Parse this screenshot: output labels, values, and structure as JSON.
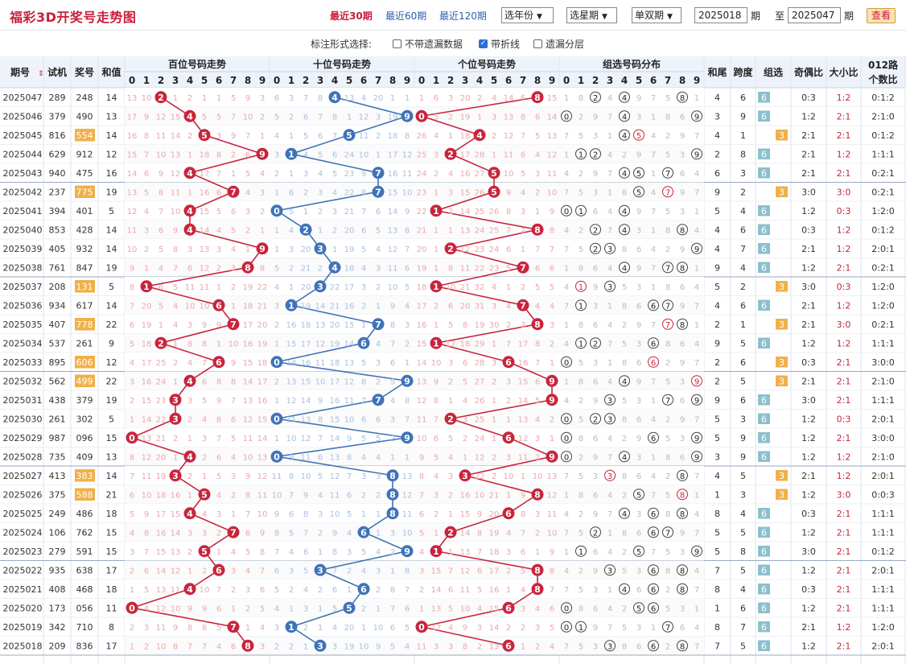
{
  "title": "福彩3D开奖号走势图",
  "quick": [
    "最近30期",
    "最近60期",
    "最近120期"
  ],
  "selects": [
    "选年份",
    "选星期",
    "单双期"
  ],
  "period_from": "2025018",
  "period_to": "2025047",
  "period_label": "期",
  "to_label": "至",
  "query_label": "查看",
  "options_label": "标注形式选择:",
  "options": [
    {
      "label": "不带遗漏数据",
      "checked": false
    },
    {
      "label": "带折线",
      "checked": true
    },
    {
      "label": "遗漏分层",
      "checked": false
    }
  ],
  "headers": {
    "qihao": "期号",
    "shiji": "试机",
    "jianghao": "奖号",
    "hezhi": "和值",
    "bai": "百位号码走势",
    "shi": "十位号码走势",
    "ge": "个位号码走势",
    "zuxuan_dist": "组选号码分布",
    "hewei": "和尾",
    "kuadu": "跨度",
    "zuxuan": "组选",
    "jiou": "奇偶比",
    "daxiao": "大小比",
    "lu012": "012路个数比"
  },
  "digits": [
    "0",
    "1",
    "2",
    "3",
    "4",
    "5",
    "6",
    "7",
    "8",
    "9"
  ],
  "colors": {
    "red": "#c8253c",
    "blue": "#3f73b8",
    "header_bg": "#eef3fb",
    "miss_red": "#e8a8b0",
    "miss_blue": "#a9bfe0",
    "miss_grey": "#bbbbbb",
    "g3": "#f0b04a",
    "g6": "#8cc0cc"
  },
  "rows": [
    {
      "period": "2025047",
      "shiji": "289",
      "num": "248",
      "sum": "14",
      "hw": "4",
      "kd": "6",
      "zx": "6",
      "jo": "0:3",
      "dx": "1:2",
      "lu": "0:1:2",
      "bm": [
        13,
        10,
        2,
        1,
        2,
        1,
        1,
        5,
        9,
        3
      ],
      "sm": [
        6,
        3,
        7,
        8,
        4,
        13,
        4,
        20,
        1,
        1
      ],
      "gm": [
        1,
        6,
        3,
        20,
        2,
        4,
        14,
        6,
        8,
        15
      ]
    },
    {
      "period": "2025046",
      "shiji": "379",
      "num": "490",
      "sum": "13",
      "hw": "3",
      "kd": "9",
      "zx": "6",
      "jo": "1:2",
      "dx": "2:1",
      "lu": "2:1:0",
      "bm": [
        17,
        9,
        12,
        15,
        4,
        5,
        5,
        7,
        10,
        2
      ],
      "sm": [
        5,
        2,
        6,
        7,
        8,
        1,
        12,
        3,
        19,
        9
      ],
      "gm": [
        0,
        5,
        2,
        19,
        1,
        3,
        13,
        8,
        6,
        14
      ]
    },
    {
      "period": "2025045",
      "shiji": "816",
      "num": "554",
      "sum": "14",
      "hw": "4",
      "kd": "1",
      "zx": "3",
      "jo": "2:1",
      "dx": "2:1",
      "lu": "0:1:2",
      "bm": [
        16,
        8,
        11,
        14,
        2,
        5,
        3,
        9,
        7,
        1
      ],
      "sm": [
        4,
        1,
        5,
        6,
        7,
        5,
        11,
        2,
        18,
        8
      ],
      "gm": [
        26,
        4,
        1,
        18,
        4,
        2,
        12,
        7,
        5,
        13
      ]
    },
    {
      "period": "2025044",
      "shiji": "629",
      "num": "912",
      "sum": "12",
      "hw": "2",
      "kd": "8",
      "zx": "6",
      "jo": "2:1",
      "dx": "1:2",
      "lu": "1:1:1",
      "bm": [
        15,
        7,
        10,
        13,
        1,
        18,
        8,
        2,
        6,
        9
      ],
      "sm": [
        3,
        1,
        4,
        5,
        6,
        24,
        10,
        1,
        17,
        12
      ],
      "gm": [
        25,
        3,
        2,
        17,
        28,
        1,
        11,
        6,
        4,
        12
      ]
    },
    {
      "period": "2025043",
      "shiji": "940",
      "num": "475",
      "sum": "16",
      "hw": "6",
      "kd": "3",
      "zx": "6",
      "jo": "2:1",
      "dx": "2:1",
      "lu": "0:2:1",
      "bm": [
        14,
        6,
        9,
        12,
        4,
        17,
        7,
        1,
        5,
        4
      ],
      "sm": [
        2,
        1,
        3,
        4,
        5,
        23,
        9,
        7,
        16,
        11
      ],
      "gm": [
        24,
        2,
        4,
        16,
        27,
        5,
        10,
        5,
        3,
        11
      ]
    },
    {
      "period": "2025042",
      "shiji": "237",
      "num": "775",
      "sum": "19",
      "hw": "9",
      "kd": "2",
      "zx": "3",
      "jo": "3:0",
      "dx": "3:0",
      "lu": "0:2:1",
      "bm": [
        13,
        5,
        8,
        11,
        1,
        16,
        6,
        7,
        4,
        3
      ],
      "sm": [
        1,
        6,
        2,
        3,
        4,
        22,
        8,
        7,
        15,
        10
      ],
      "gm": [
        23,
        1,
        3,
        15,
        26,
        5,
        9,
        4,
        2,
        10
      ]
    },
    {
      "period": "2025041",
      "shiji": "394",
      "num": "401",
      "sum": "5",
      "hw": "5",
      "kd": "4",
      "zx": "6",
      "jo": "1:2",
      "dx": "0:3",
      "lu": "1:2:0",
      "bm": [
        12,
        4,
        7,
        10,
        4,
        15,
        5,
        6,
        3,
        2
      ],
      "sm": [
        0,
        5,
        1,
        2,
        3,
        21,
        7,
        6,
        14,
        9
      ],
      "gm": [
        22,
        1,
        2,
        14,
        25,
        26,
        8,
        3,
        1,
        9
      ]
    },
    {
      "period": "2025040",
      "shiji": "853",
      "num": "428",
      "sum": "14",
      "hw": "4",
      "kd": "6",
      "zx": "6",
      "jo": "0:3",
      "dx": "1:2",
      "lu": "0:1:2",
      "bm": [
        11,
        3,
        6,
        9,
        4,
        14,
        4,
        5,
        2,
        1
      ],
      "sm": [
        1,
        4,
        2,
        1,
        2,
        20,
        6,
        5,
        13,
        8
      ],
      "gm": [
        21,
        1,
        1,
        13,
        24,
        25,
        7,
        2,
        8,
        8
      ]
    },
    {
      "period": "2025039",
      "shiji": "405",
      "num": "932",
      "sum": "14",
      "hw": "4",
      "kd": "7",
      "zx": "6",
      "jo": "2:1",
      "dx": "1:2",
      "lu": "2:0:1",
      "bm": [
        10,
        2,
        5,
        8,
        3,
        13,
        3,
        4,
        1,
        9
      ],
      "sm": [
        1,
        3,
        20,
        3,
        1,
        19,
        5,
        4,
        12,
        7
      ],
      "gm": [
        20,
        1,
        2,
        12,
        23,
        24,
        6,
        1,
        7,
        7
      ]
    },
    {
      "period": "2025038",
      "shiji": "761",
      "num": "847",
      "sum": "19",
      "hw": "9",
      "kd": "4",
      "zx": "6",
      "jo": "1:2",
      "dx": "2:1",
      "lu": "0:2:1",
      "bm": [
        9,
        1,
        4,
        7,
        6,
        12,
        2,
        3,
        8,
        8
      ],
      "sm": [
        5,
        2,
        21,
        2,
        4,
        18,
        4,
        3,
        11,
        6
      ],
      "gm": [
        19,
        1,
        8,
        11,
        22,
        23,
        5,
        7,
        6,
        6
      ]
    },
    {
      "period": "2025037",
      "shiji": "208",
      "num": "131",
      "sum": "5",
      "hw": "5",
      "kd": "2",
      "zx": "3",
      "jo": "3:0",
      "dx": "0:3",
      "lu": "1:2:0",
      "bm": [
        8,
        1,
        6,
        5,
        11,
        11,
        1,
        2,
        19,
        22
      ],
      "sm": [
        4,
        1,
        20,
        3,
        22,
        17,
        3,
        2,
        10,
        5
      ],
      "gm": [
        18,
        1,
        10,
        21,
        32,
        4,
        1,
        2,
        5,
        5
      ]
    },
    {
      "period": "2025036",
      "shiji": "934",
      "num": "617",
      "sum": "14",
      "hw": "4",
      "kd": "6",
      "zx": "6",
      "jo": "2:1",
      "dx": "1:2",
      "lu": "1:2:0",
      "bm": [
        7,
        20,
        5,
        4,
        10,
        10,
        6,
        1,
        18,
        21
      ],
      "sm": [
        3,
        1,
        19,
        14,
        21,
        16,
        2,
        1,
        9,
        4
      ],
      "gm": [
        17,
        2,
        6,
        20,
        31,
        3,
        4,
        7,
        4,
        4
      ]
    },
    {
      "period": "2025035",
      "shiji": "407",
      "num": "778",
      "sum": "22",
      "hw": "2",
      "kd": "1",
      "zx": "3",
      "jo": "2:1",
      "dx": "3:0",
      "lu": "0:2:1",
      "bm": [
        6,
        19,
        1,
        4,
        3,
        9,
        9,
        7,
        17,
        20
      ],
      "sm": [
        2,
        16,
        18,
        13,
        20,
        15,
        1,
        7,
        8,
        3
      ],
      "gm": [
        16,
        1,
        5,
        8,
        19,
        30,
        2,
        3,
        8,
        3
      ]
    },
    {
      "period": "2025034",
      "shiji": "537",
      "num": "261",
      "sum": "9",
      "hw": "9",
      "kd": "5",
      "zx": "6",
      "jo": "1:2",
      "dx": "1:2",
      "lu": "1:1:1",
      "bm": [
        5,
        18,
        2,
        1,
        8,
        8,
        1,
        10,
        16,
        19
      ],
      "sm": [
        1,
        15,
        17,
        12,
        19,
        14,
        6,
        4,
        7,
        2
      ],
      "gm": [
        15,
        1,
        17,
        18,
        29,
        1,
        7,
        17,
        8,
        2
      ]
    },
    {
      "period": "2025033",
      "shiji": "895",
      "num": "606",
      "sum": "12",
      "hw": "2",
      "kd": "6",
      "zx": "3",
      "jo": "0:3",
      "dx": "2:1",
      "lu": "3:0:0",
      "bm": [
        4,
        17,
        25,
        2,
        4,
        7,
        6,
        9,
        15,
        18
      ],
      "sm": [
        0,
        14,
        16,
        11,
        18,
        13,
        5,
        3,
        6,
        1
      ],
      "gm": [
        14,
        10,
        3,
        6,
        28,
        3,
        6,
        16,
        7,
        1
      ]
    },
    {
      "period": "2025032",
      "shiji": "562",
      "num": "499",
      "sum": "22",
      "hw": "2",
      "kd": "5",
      "zx": "3",
      "jo": "2:1",
      "dx": "2:1",
      "lu": "2:1:0",
      "bm": [
        3,
        16,
        24,
        1,
        4,
        6,
        8,
        8,
        14,
        17
      ],
      "sm": [
        2,
        13,
        15,
        10,
        17,
        12,
        8,
        2,
        5,
        9
      ],
      "gm": [
        13,
        9,
        2,
        5,
        27,
        2,
        3,
        15,
        6,
        9
      ]
    },
    {
      "period": "2025031",
      "shiji": "438",
      "num": "379",
      "sum": "19",
      "hw": "9",
      "kd": "6",
      "zx": "6",
      "jo": "3:0",
      "dx": "2:1",
      "lu": "1:1:1",
      "bm": [
        2,
        15,
        23,
        3,
        3,
        5,
        9,
        7,
        13,
        16
      ],
      "sm": [
        1,
        12,
        14,
        9,
        16,
        11,
        7,
        7,
        4,
        8
      ],
      "gm": [
        12,
        8,
        1,
        4,
        26,
        1,
        2,
        14,
        5,
        9
      ]
    },
    {
      "period": "2025030",
      "shiji": "261",
      "num": "302",
      "sum": "5",
      "hw": "5",
      "kd": "3",
      "zx": "6",
      "jo": "1:2",
      "dx": "0:3",
      "lu": "2:0:1",
      "bm": [
        1,
        14,
        22,
        3,
        2,
        4,
        8,
        6,
        12,
        15
      ],
      "sm": [
        0,
        11,
        13,
        8,
        15,
        10,
        6,
        6,
        3,
        7
      ],
      "gm": [
        11,
        7,
        2,
        3,
        25,
        1,
        1,
        13,
        4,
        2
      ]
    },
    {
      "period": "2025029",
      "shiji": "987",
      "num": "096",
      "sum": "15",
      "hw": "5",
      "kd": "9",
      "zx": "6",
      "jo": "1:2",
      "dx": "2:1",
      "lu": "3:0:0",
      "bm": [
        0,
        13,
        21,
        2,
        1,
        3,
        7,
        5,
        11,
        14
      ],
      "sm": [
        1,
        10,
        12,
        7,
        14,
        9,
        5,
        5,
        2,
        9
      ],
      "gm": [
        10,
        6,
        5,
        2,
        24,
        1,
        6,
        12,
        3,
        1
      ]
    },
    {
      "period": "2025028",
      "shiji": "735",
      "num": "409",
      "sum": "13",
      "hw": "3",
      "kd": "9",
      "zx": "6",
      "jo": "1:2",
      "dx": "1:2",
      "lu": "2:1:0",
      "bm": [
        8,
        12,
        20,
        1,
        4,
        2,
        6,
        4,
        10,
        13
      ],
      "sm": [
        0,
        9,
        11,
        6,
        13,
        8,
        4,
        4,
        1,
        1
      ],
      "gm": [
        9,
        5,
        4,
        1,
        12,
        2,
        3,
        11,
        2,
        9
      ]
    },
    {
      "period": "2025027",
      "shiji": "413",
      "num": "383",
      "sum": "14",
      "hw": "4",
      "kd": "5",
      "zx": "3",
      "jo": "2:1",
      "dx": "1:2",
      "lu": "2:0:1",
      "bm": [
        7,
        11,
        19,
        3,
        2,
        1,
        5,
        3,
        9,
        12
      ],
      "sm": [
        11,
        8,
        10,
        5,
        12,
        7,
        3,
        3,
        8,
        13
      ],
      "gm": [
        8,
        4,
        3,
        3,
        22,
        2,
        10,
        1,
        10,
        13
      ]
    },
    {
      "period": "2025026",
      "shiji": "375",
      "num": "588",
      "sum": "21",
      "hw": "1",
      "kd": "3",
      "zx": "3",
      "jo": "1:2",
      "dx": "3:0",
      "lu": "0:0:3",
      "bm": [
        6,
        10,
        18,
        16,
        1,
        5,
        4,
        2,
        8,
        11
      ],
      "sm": [
        10,
        7,
        9,
        4,
        11,
        6,
        2,
        2,
        8,
        12
      ],
      "gm": [
        7,
        3,
        2,
        16,
        10,
        21,
        1,
        9,
        8,
        12
      ]
    },
    {
      "period": "2025025",
      "shiji": "249",
      "num": "486",
      "sum": "18",
      "hw": "8",
      "kd": "4",
      "zx": "6",
      "jo": "0:3",
      "dx": "2:1",
      "lu": "1:1:1",
      "bm": [
        5,
        9,
        17,
        15,
        4,
        4,
        3,
        1,
        7,
        10
      ],
      "sm": [
        9,
        6,
        8,
        3,
        10,
        5,
        1,
        1,
        8,
        11
      ],
      "gm": [
        6,
        2,
        1,
        15,
        9,
        20,
        6,
        8,
        3,
        11
      ]
    },
    {
      "period": "2025024",
      "shiji": "106",
      "num": "762",
      "sum": "15",
      "hw": "5",
      "kd": "5",
      "zx": "6",
      "jo": "1:2",
      "dx": "2:1",
      "lu": "1:1:1",
      "bm": [
        4,
        8,
        16,
        14,
        3,
        3,
        2,
        7,
        6,
        9
      ],
      "sm": [
        8,
        5,
        7,
        2,
        9,
        4,
        6,
        1,
        3,
        10
      ],
      "gm": [
        5,
        1,
        2,
        14,
        8,
        19,
        4,
        7,
        2,
        10
      ]
    },
    {
      "period": "2025023",
      "shiji": "279",
      "num": "591",
      "sum": "15",
      "hw": "5",
      "kd": "8",
      "zx": "6",
      "jo": "3:0",
      "dx": "2:1",
      "lu": "0:1:2",
      "bm": [
        3,
        7,
        15,
        13,
        2,
        5,
        1,
        4,
        5,
        8
      ],
      "sm": [
        7,
        4,
        6,
        1,
        8,
        3,
        5,
        4,
        2,
        9
      ],
      "gm": [
        4,
        1,
        1,
        13,
        7,
        18,
        3,
        6,
        1,
        9
      ]
    },
    {
      "period": "2025022",
      "shiji": "935",
      "num": "638",
      "sum": "17",
      "hw": "7",
      "kd": "5",
      "zx": "6",
      "jo": "1:2",
      "dx": "2:1",
      "lu": "2:0:1",
      "bm": [
        2,
        6,
        14,
        12,
        1,
        2,
        6,
        3,
        4,
        7
      ],
      "sm": [
        6,
        3,
        5,
        3,
        7,
        2,
        4,
        3,
        1,
        8
      ],
      "gm": [
        3,
        15,
        7,
        12,
        6,
        17,
        2,
        5,
        8,
        8
      ]
    },
    {
      "period": "2025021",
      "shiji": "408",
      "num": "468",
      "sum": "18",
      "hw": "8",
      "kd": "4",
      "zx": "6",
      "jo": "0:3",
      "dx": "2:1",
      "lu": "1:1:1",
      "bm": [
        1,
        5,
        13,
        11,
        4,
        10,
        7,
        2,
        3,
        6
      ],
      "sm": [
        5,
        2,
        4,
        2,
        6,
        1,
        6,
        2,
        8,
        7
      ],
      "gm": [
        2,
        14,
        6,
        11,
        5,
        16,
        1,
        4,
        8,
        7
      ]
    },
    {
      "period": "2025020",
      "shiji": "173",
      "num": "056",
      "sum": "11",
      "hw": "1",
      "kd": "6",
      "zx": "6",
      "jo": "1:2",
      "dx": "2:1",
      "lu": "1:1:1",
      "bm": [
        0,
        4,
        12,
        10,
        9,
        9,
        6,
        1,
        2,
        5
      ],
      "sm": [
        4,
        1,
        3,
        1,
        5,
        5,
        2,
        1,
        7,
        6
      ],
      "gm": [
        1,
        13,
        5,
        10,
        4,
        15,
        6,
        3,
        4,
        6
      ]
    },
    {
      "period": "2025019",
      "shiji": "342",
      "num": "710",
      "sum": "8",
      "hw": "8",
      "kd": "7",
      "zx": "6",
      "jo": "2:1",
      "dx": "1:2",
      "lu": "1:2:0",
      "bm": [
        2,
        3,
        11,
        9,
        8,
        8,
        5,
        7,
        1,
        4
      ],
      "sm": [
        3,
        1,
        2,
        1,
        4,
        20,
        1,
        10,
        6,
        5
      ],
      "gm": [
        0,
        12,
        4,
        9,
        3,
        14,
        2,
        2,
        3,
        5
      ]
    },
    {
      "period": "2025018",
      "shiji": "209",
      "num": "836",
      "sum": "17",
      "hw": "7",
      "kd": "5",
      "zx": "6",
      "jo": "1:2",
      "dx": "2:1",
      "lu": "2:0:1",
      "bm": [
        1,
        2,
        10,
        8,
        7,
        7,
        4,
        6,
        8,
        3
      ],
      "sm": [
        2,
        2,
        1,
        3,
        3,
        19,
        10,
        9,
        5,
        4
      ],
      "gm": [
        11,
        3,
        3,
        8,
        2,
        13,
        6,
        1,
        2,
        4
      ]
    }
  ]
}
